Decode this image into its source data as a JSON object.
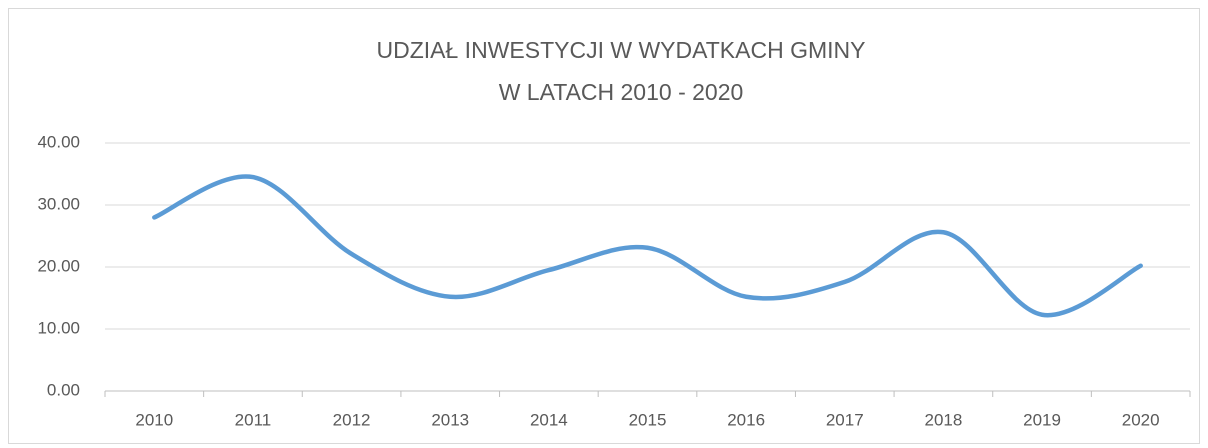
{
  "chart_data": {
    "type": "line",
    "title": [
      "UDZIAŁ INWESTYCJI W WYDATKACH GMINY",
      "W LATACH 2010 - 2020"
    ],
    "categories": [
      "2010",
      "2011",
      "2012",
      "2013",
      "2014",
      "2015",
      "2016",
      "2017",
      "2018",
      "2019",
      "2020"
    ],
    "values": [
      28.0,
      34.5,
      22.1,
      15.2,
      19.5,
      23.1,
      15.2,
      17.6,
      25.6,
      12.3,
      20.2
    ],
    "color": "#5b9bd5",
    "smooth": true,
    "ylim": [
      0,
      40
    ],
    "yticks": [
      {
        "value": 0,
        "label": "0.00"
      },
      {
        "value": 10,
        "label": "10.00"
      },
      {
        "value": 20,
        "label": "20.00"
      },
      {
        "value": 30,
        "label": "30.00"
      },
      {
        "value": 40,
        "label": "40.00"
      }
    ],
    "grid": true
  }
}
